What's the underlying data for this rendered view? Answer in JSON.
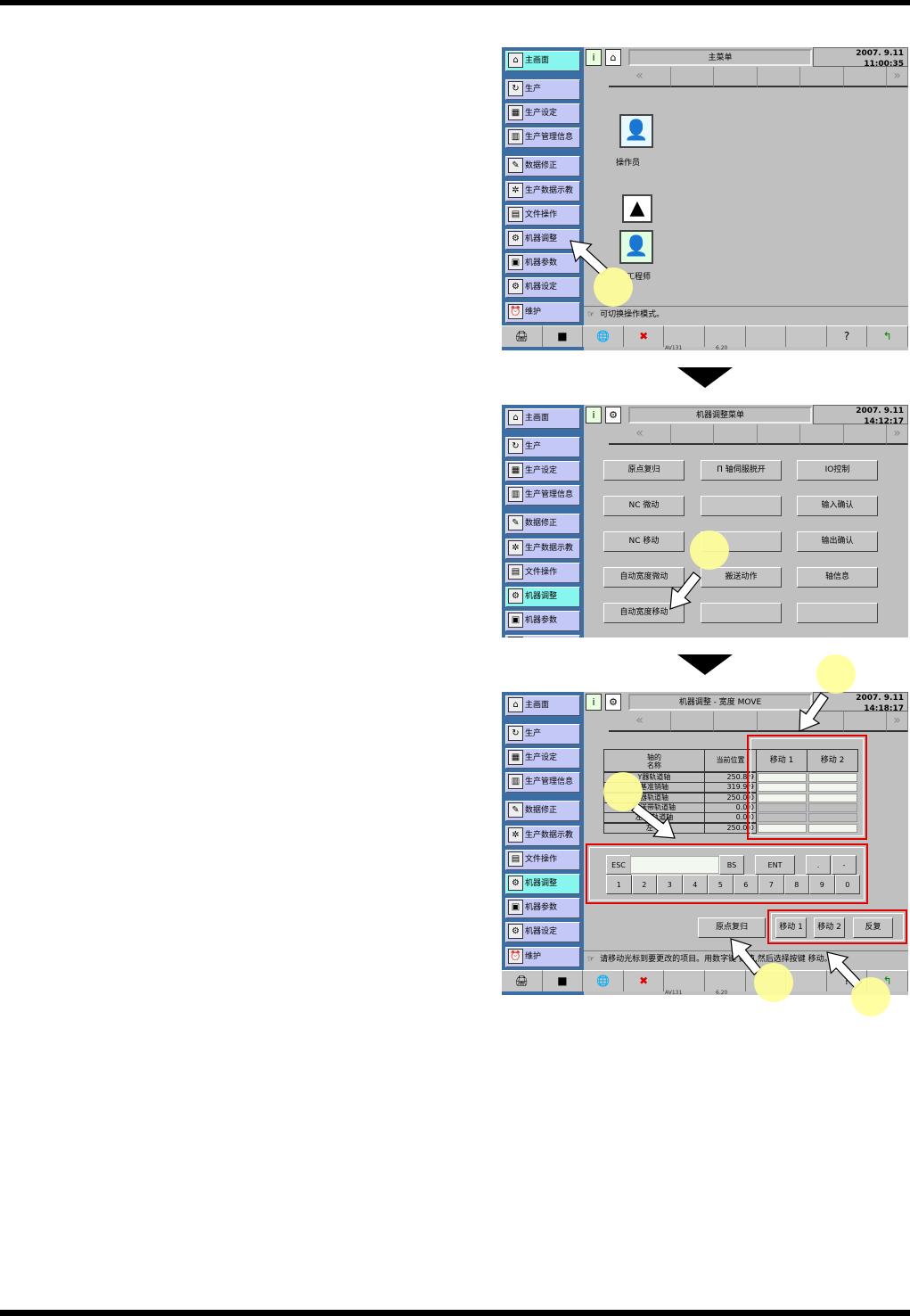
{
  "sidebar_items": [
    {
      "label": "主画面",
      "icon": "home-icon",
      "glyph": "⌂"
    },
    {
      "label": "生产",
      "icon": "production-icon",
      "glyph": "↻"
    },
    {
      "label": "生产设定",
      "icon": "production-settings-icon",
      "glyph": "▦"
    },
    {
      "label": "生产管理信息",
      "icon": "production-info-icon",
      "glyph": "▥"
    },
    {
      "label": "数据修正",
      "icon": "data-edit-icon",
      "glyph": "✎"
    },
    {
      "label": "生产数据示教",
      "icon": "teach-icon",
      "glyph": "✲"
    },
    {
      "label": "文件操作",
      "icon": "file-icon",
      "glyph": "▤"
    },
    {
      "label": "机器调整",
      "icon": "machine-adjust-icon",
      "glyph": "⚙"
    },
    {
      "label": "机器参数",
      "icon": "machine-params-icon",
      "glyph": "▣"
    },
    {
      "label": "机器设定",
      "icon": "machine-settings-icon",
      "glyph": "⚙"
    },
    {
      "label": "维护",
      "icon": "maintenance-icon",
      "glyph": "⏰"
    }
  ],
  "footer_version": {
    "left": "AV131",
    "right": "6.20"
  },
  "accent_colors": {
    "highlight": "#e00000",
    "annotation": "#ffff99",
    "sidebar": "#3c6ea6"
  },
  "panel1": {
    "title": "主菜单",
    "datetime": "2007. 9.11 11:00:35",
    "operator_label": "操作员",
    "engineer_label": "工程师",
    "status": "可切换操作模式。"
  },
  "panel2": {
    "title": "机器调整菜单",
    "datetime": "2007. 9.11 14:12:17",
    "buttons": [
      [
        "原点复归",
        "Π 轴伺服脱开",
        "IO控制"
      ],
      [
        "NC 微动",
        "",
        "输入确认"
      ],
      [
        "NC 移动",
        "",
        "输出确认"
      ],
      [
        "自动宽度微动",
        "搬送动作",
        "轴信息"
      ],
      [
        "自动宽度移动",
        "",
        ""
      ]
    ]
  },
  "panel3": {
    "title": "机器调整 - 宽度 MOVE",
    "datetime": "2007. 9.11 14:18:17",
    "table": {
      "headers": [
        "轴的\n名称",
        "当前位置",
        "移动 1",
        "移动 2"
      ],
      "rows": [
        {
          "name": "Y器轨道轴",
          "pos": "250.8 9"
        },
        {
          "name": "基准销轴",
          "pos": "319.9 9"
        },
        {
          "name": "器轨道轴",
          "pos": "250.0 0"
        },
        {
          "name": "传送带轨道轴",
          "pos": "0.0 0"
        },
        {
          "name": "左传  轨道轴",
          "pos": "0.0 0"
        },
        {
          "name": "左  轴",
          "pos": "250.0 0"
        }
      ]
    },
    "keypad": {
      "top": [
        "ESC",
        "BS",
        "ENT",
        ".",
        "-"
      ],
      "digits": [
        "1",
        "2",
        "3",
        "4",
        "5",
        "6",
        "7",
        "8",
        "9",
        "0"
      ],
      "input_value": ""
    },
    "origin_button": "原点复归",
    "action_buttons": [
      "移动 1",
      "移动 2",
      "反复"
    ],
    "status": "请移动光标到要更改的项目。用数字键    数值,然后选择按键   移动。"
  }
}
